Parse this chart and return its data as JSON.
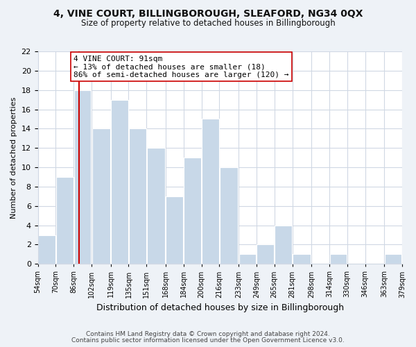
{
  "title": "4, VINE COURT, BILLINGBOROUGH, SLEAFORD, NG34 0QX",
  "subtitle": "Size of property relative to detached houses in Billingborough",
  "xlabel": "Distribution of detached houses by size in Billingborough",
  "ylabel": "Number of detached properties",
  "bar_color": "#c8d8e8",
  "bar_left_edges": [
    54,
    70,
    86,
    102,
    119,
    135,
    151,
    168,
    184,
    200,
    216,
    233,
    249,
    265,
    281,
    298,
    314,
    330,
    346,
    363
  ],
  "bar_widths": [
    16,
    16,
    16,
    17,
    16,
    16,
    17,
    16,
    16,
    16,
    17,
    16,
    16,
    16,
    17,
    16,
    16,
    16,
    17,
    16
  ],
  "bar_heights": [
    3,
    9,
    18,
    14,
    17,
    14,
    12,
    7,
    11,
    15,
    10,
    1,
    2,
    4,
    1,
    0,
    1,
    0,
    0,
    1
  ],
  "tick_labels": [
    "54sqm",
    "70sqm",
    "86sqm",
    "102sqm",
    "119sqm",
    "135sqm",
    "151sqm",
    "168sqm",
    "184sqm",
    "200sqm",
    "216sqm",
    "233sqm",
    "249sqm",
    "265sqm",
    "281sqm",
    "298sqm",
    "314sqm",
    "330sqm",
    "346sqm",
    "363sqm",
    "379sqm"
  ],
  "ylim": [
    0,
    22
  ],
  "yticks": [
    0,
    2,
    4,
    6,
    8,
    10,
    12,
    14,
    16,
    18,
    20,
    22
  ],
  "vline_x": 91,
  "vline_color": "#cc0000",
  "annotation_line1": "4 VINE COURT: 91sqm",
  "annotation_line2": "← 13% of detached houses are smaller (18)",
  "annotation_line3": "86% of semi-detached houses are larger (120) →",
  "annotation_box_color": "#ffffff",
  "annotation_box_edge": "#cc0000",
  "footer_line1": "Contains HM Land Registry data © Crown copyright and database right 2024.",
  "footer_line2": "Contains public sector information licensed under the Open Government Licence v3.0.",
  "background_color": "#eef2f7",
  "plot_background_color": "#ffffff",
  "grid_color": "#d0d8e4",
  "title_fontsize": 10,
  "subtitle_fontsize": 8.5,
  "ylabel_fontsize": 8,
  "xlabel_fontsize": 9
}
